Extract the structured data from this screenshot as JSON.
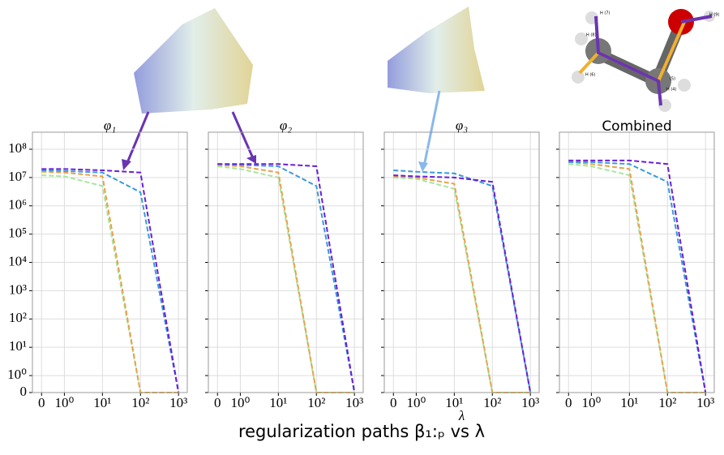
{
  "chart_data": [
    {
      "type": "line",
      "title": "φ₁",
      "x": [
        0,
        1,
        10,
        100,
        1000
      ],
      "series": [
        {
          "color": "#a8e6a0",
          "values": [
            12000000,
            11000000,
            5000000,
            0,
            0
          ]
        },
        {
          "color": "#e8a24a",
          "values": [
            16000000,
            15000000,
            11000000,
            0,
            0
          ]
        },
        {
          "color": "#3a9ad9",
          "values": [
            18000000,
            17000000,
            15000000,
            3000000,
            0
          ]
        },
        {
          "color": "#6a1fd6",
          "values": [
            20000000,
            20000000,
            18000000,
            15000000,
            0
          ]
        }
      ],
      "xlim": [
        -0.4,
        1700
      ],
      "ylim": [
        0,
        400000000
      ],
      "xticks": [
        0,
        {
          "value": 1,
          "label": "10⁰"
        },
        {
          "value": 10,
          "label": "10¹"
        },
        {
          "value": 100,
          "label": "10²"
        },
        {
          "value": 1000,
          "label": "10³"
        }
      ],
      "yticks": [
        0,
        {
          "value": 1,
          "label": "10⁰"
        },
        {
          "value": 10,
          "label": "10¹"
        },
        {
          "value": 100,
          "label": "10²"
        },
        {
          "value": 1000,
          "label": "10³"
        },
        {
          "value": 10000,
          "label": "10⁴"
        },
        {
          "value": 100000,
          "label": "10⁵"
        },
        {
          "value": 1000000,
          "label": "10⁶"
        },
        {
          "value": 10000000,
          "label": "10⁷"
        },
        {
          "value": 100000000,
          "label": "10⁸"
        }
      ],
      "yscale": "symlog",
      "xscale": "symlog",
      "grid": true
    },
    {
      "type": "line",
      "title": "φ₂",
      "x": [
        0,
        1,
        10,
        100,
        1000
      ],
      "series": [
        {
          "color": "#a8e6a0",
          "values": [
            25000000,
            20000000,
            10000000,
            0,
            0
          ]
        },
        {
          "color": "#e8a24a",
          "values": [
            28000000,
            25000000,
            15000000,
            0,
            0
          ]
        },
        {
          "color": "#3a9ad9",
          "values": [
            30000000,
            28000000,
            25000000,
            5000000,
            0
          ]
        },
        {
          "color": "#6a1fd6",
          "values": [
            30000000,
            30000000,
            30000000,
            25000000,
            0
          ]
        }
      ],
      "xlim": [
        -0.4,
        1700
      ],
      "ylim": [
        0,
        400000000
      ],
      "xticks": [
        0,
        {
          "value": 1,
          "label": "10⁰"
        },
        {
          "value": 10,
          "label": "10¹"
        },
        {
          "value": 100,
          "label": "10²"
        },
        {
          "value": 1000,
          "label": "10³"
        }
      ],
      "yticks": [
        0,
        1,
        10,
        100,
        1000,
        10000,
        100000,
        1000000,
        10000000,
        100000000
      ],
      "yscale": "symlog",
      "xscale": "symlog",
      "grid": true
    },
    {
      "type": "line",
      "title": "φ₃",
      "xlabel": "λ",
      "x": [
        0,
        1,
        10,
        100,
        1000
      ],
      "series": [
        {
          "color": "#a8e6a0",
          "values": [
            10000000,
            9000000,
            4000000,
            0,
            0
          ]
        },
        {
          "color": "#e8a24a",
          "values": [
            11000000,
            10000000,
            6000000,
            0,
            0
          ]
        },
        {
          "color": "#3a9ad9",
          "values": [
            18000000,
            16000000,
            14000000,
            5000000,
            0
          ]
        },
        {
          "color": "#6a1fd6",
          "values": [
            12000000,
            11000000,
            10000000,
            7000000,
            0
          ]
        }
      ],
      "xlim": [
        -0.4,
        1700
      ],
      "ylim": [
        0,
        400000000
      ],
      "xticks": [
        0,
        {
          "value": 1,
          "label": "10⁰"
        },
        {
          "value": 10,
          "label": "10¹"
        },
        {
          "value": 100,
          "label": "10²"
        },
        {
          "value": 1000,
          "label": "10³"
        }
      ],
      "yticks": [
        0,
        1,
        10,
        100,
        1000,
        10000,
        100000,
        1000000,
        10000000,
        100000000
      ],
      "yscale": "symlog",
      "xscale": "symlog",
      "grid": true
    },
    {
      "type": "line",
      "title": "Combined",
      "x": [
        0,
        1,
        10,
        100,
        1000
      ],
      "series": [
        {
          "color": "#a8e6a0",
          "values": [
            30000000,
            25000000,
            12000000,
            0,
            0
          ]
        },
        {
          "color": "#e8a24a",
          "values": [
            35000000,
            30000000,
            20000000,
            0,
            0
          ]
        },
        {
          "color": "#3a9ad9",
          "values": [
            35000000,
            35000000,
            30000000,
            7000000,
            0
          ]
        },
        {
          "color": "#6a1fd6",
          "values": [
            40000000,
            40000000,
            40000000,
            30000000,
            0
          ]
        }
      ],
      "xlim": [
        -0.4,
        1700
      ],
      "ylim": [
        0,
        400000000
      ],
      "xticks": [
        0,
        {
          "value": 1,
          "label": "10⁰"
        },
        {
          "value": 10,
          "label": "10¹"
        },
        {
          "value": 100,
          "label": "10²"
        },
        {
          "value": 1000,
          "label": "10³"
        }
      ],
      "yticks": [
        0,
        1,
        10,
        100,
        1000,
        10000,
        100000,
        1000000,
        10000000,
        100000000
      ],
      "yscale": "symlog",
      "xscale": "symlog",
      "grid": true
    }
  ],
  "caption": "regularization paths β₁:ₚ vs λ",
  "molecule": {
    "labels": [
      "H (7)",
      "H (8)",
      "H (6)",
      "(5)",
      "H (4)",
      "H (9)"
    ]
  }
}
